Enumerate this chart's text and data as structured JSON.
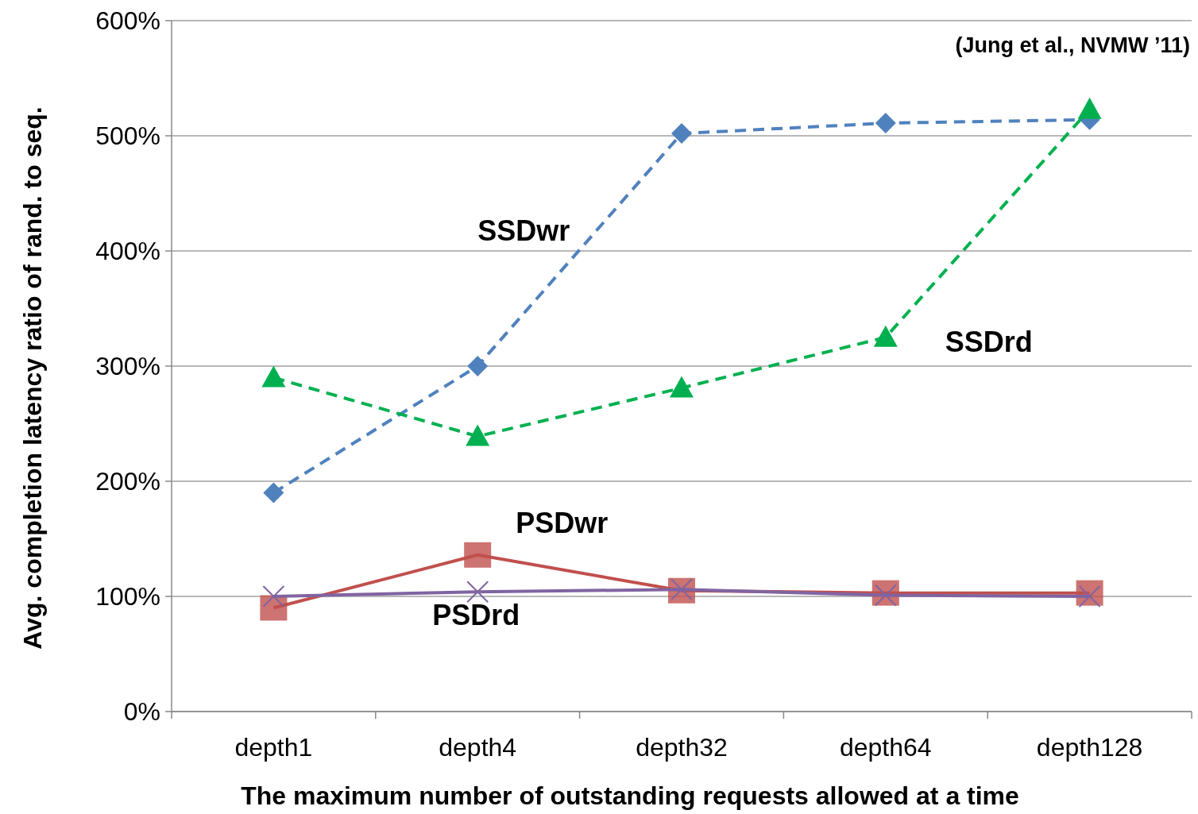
{
  "chart_data": {
    "type": "line",
    "xlabel": "The maximum number of outstanding requests allowed at a time",
    "ylabel": "Avg. completion latency ratio of rand. to seq.",
    "categories": [
      "depth1",
      "depth4",
      "depth32",
      "depth64",
      "depth128"
    ],
    "ylim": [
      0,
      600
    ],
    "yticks": [
      {
        "value": 0,
        "label": "0%"
      },
      {
        "value": 100,
        "label": "100%"
      },
      {
        "value": 200,
        "label": "200%"
      },
      {
        "value": 300,
        "label": "300%"
      },
      {
        "value": 400,
        "label": "400%"
      },
      {
        "value": 500,
        "label": "500%"
      },
      {
        "value": 600,
        "label": "600%"
      }
    ],
    "grid": "y",
    "annotations": [
      "(Jung et al., NVMW ’11)"
    ],
    "series": [
      {
        "name": "SSDwr",
        "color": "#4f81bd",
        "marker": "diamond",
        "line_style": "dashed",
        "values": [
          190,
          300,
          502,
          511,
          514
        ]
      },
      {
        "name": "SSDrd",
        "color": "#00b050",
        "marker": "triangle",
        "line_style": "dashed",
        "values": [
          290,
          239,
          281,
          325,
          523
        ]
      },
      {
        "name": "PSDwr",
        "color": "#c0504d",
        "marker": "square",
        "line_style": "solid",
        "values": [
          90,
          136,
          105,
          103,
          103
        ]
      },
      {
        "name": "PSDrd",
        "color": "#8064a2",
        "marker": "cross",
        "line_style": "solid",
        "values": [
          100,
          104,
          106,
          101,
          100
        ]
      }
    ]
  }
}
